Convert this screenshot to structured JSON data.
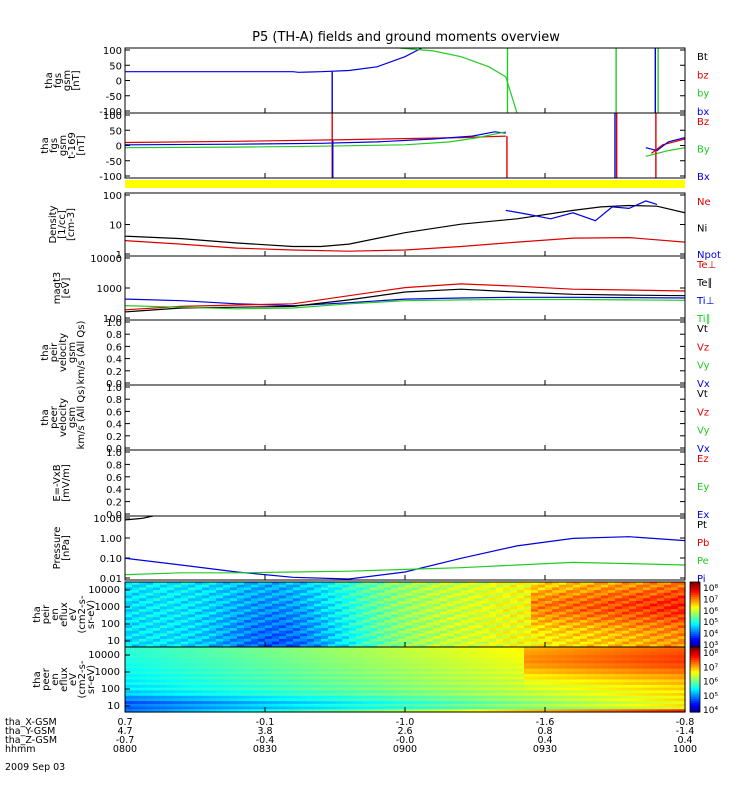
{
  "title": "P5 (TH-A) fields and ground moments overview",
  "colors": {
    "black": "#000000",
    "red": "#dd0000",
    "green": "#22cc22",
    "blue": "#0000dd",
    "yellow": "#ffff00"
  },
  "chart_data": [
    {
      "id": "fgs",
      "type": "line",
      "ylabel": [
        "tha",
        "fgs",
        "gsm",
        "[nT]"
      ],
      "yticks": [
        "100",
        "50",
        "0",
        "-50",
        "-100"
      ],
      "ylim": [
        -115,
        110
      ],
      "legend": [
        {
          "label": "Bt",
          "color": "black"
        },
        {
          "label": "bz",
          "color": "red"
        },
        {
          "label": "by",
          "color": "green"
        },
        {
          "label": "bx",
          "color": "blue"
        }
      ],
      "series": [
        {
          "color": "blue",
          "x": [
            0,
            0.3,
            0.31,
            0.33,
            0.35,
            0.4,
            0.45,
            0.5,
            0.53
          ],
          "y": [
            28,
            28,
            26,
            27,
            28,
            32,
            45,
            80,
            110
          ]
        },
        {
          "color": "green",
          "x": [
            0.49,
            0.55,
            0.6,
            0.65,
            0.68,
            0.7
          ],
          "y": [
            110,
            100,
            80,
            45,
            10,
            -115
          ]
        }
      ],
      "spikes": [
        {
          "x": 0.37,
          "from": -115,
          "to": 28,
          "color": "blue"
        },
        {
          "x": 0.683,
          "from": -115,
          "to": 110,
          "color": "green"
        },
        {
          "x": 0.877,
          "from": -115,
          "to": 110,
          "color": "green"
        },
        {
          "x": 0.947,
          "from": -115,
          "to": 110,
          "color": "blue"
        },
        {
          "x": 0.952,
          "from": -115,
          "to": 110,
          "color": "green"
        }
      ]
    },
    {
      "id": "fgs_169",
      "type": "line",
      "ylabel": [
        "tha",
        "fgs",
        "gsm",
        "t-169",
        "[nT]"
      ],
      "yticks": [
        "100",
        "50",
        "0",
        "-50",
        "-100"
      ],
      "ylim": [
        -115,
        110
      ],
      "legend": [
        {
          "label": "Bz",
          "color": "red"
        },
        {
          "label": "By",
          "color": "green"
        },
        {
          "label": "Bx",
          "color": "blue"
        }
      ],
      "series": [
        {
          "color": "red",
          "x": [
            0,
            0.2,
            0.4,
            0.6,
            0.65,
            0.68
          ],
          "y": [
            8,
            12,
            18,
            25,
            28,
            30
          ]
        },
        {
          "color": "blue",
          "x": [
            0,
            0.2,
            0.35,
            0.45,
            0.55,
            0.62,
            0.66,
            0.68
          ],
          "y": [
            0,
            2,
            5,
            10,
            20,
            30,
            45,
            40
          ]
        },
        {
          "color": "green",
          "x": [
            0,
            0.2,
            0.35,
            0.5,
            0.58,
            0.63,
            0.68
          ],
          "y": [
            -10,
            -8,
            -5,
            0,
            10,
            25,
            45
          ]
        },
        {
          "color": "red",
          "x": [
            0.94,
            0.96,
            0.98,
            1.0
          ],
          "y": [
            -30,
            0,
            10,
            20
          ]
        },
        {
          "color": "blue",
          "x": [
            0.93,
            0.95,
            0.97,
            1.0
          ],
          "y": [
            -10,
            -20,
            10,
            25
          ]
        },
        {
          "color": "green",
          "x": [
            0.93,
            0.95,
            0.97,
            1.0
          ],
          "y": [
            -40,
            -30,
            -20,
            -10
          ]
        }
      ],
      "spikes": [
        {
          "x": 0.37,
          "from": -115,
          "to": 110,
          "color": "red"
        },
        {
          "x": 0.371,
          "from": -115,
          "to": 15,
          "color": "blue"
        },
        {
          "x": 0.682,
          "from": -115,
          "to": 30,
          "color": "red"
        },
        {
          "x": 0.875,
          "from": -115,
          "to": 110,
          "color": "blue"
        },
        {
          "x": 0.878,
          "from": -115,
          "to": 110,
          "color": "red"
        },
        {
          "x": 0.948,
          "from": -115,
          "to": 110,
          "color": "red"
        }
      ]
    },
    {
      "id": "density",
      "type": "line",
      "scale": "log",
      "ylabel": [
        "Density",
        "[1/cc]",
        "[cm-3]"
      ],
      "yticks": [
        "100",
        "10",
        "1"
      ],
      "ylim": [
        0.2,
        300
      ],
      "legend": [
        {
          "label": "Ne",
          "color": "red"
        },
        {
          "label": "Ni",
          "color": "black"
        },
        {
          "label": "Npot",
          "color": "blue"
        }
      ],
      "series": [
        {
          "color": "black",
          "x": [
            0,
            0.1,
            0.2,
            0.3,
            0.35,
            0.4,
            0.5,
            0.6,
            0.7,
            0.8,
            0.85,
            0.9,
            0.95,
            1.0
          ],
          "y": [
            2,
            1.5,
            0.9,
            0.6,
            0.6,
            0.8,
            3,
            8,
            15,
            40,
            60,
            70,
            65,
            30
          ]
        },
        {
          "color": "red",
          "x": [
            0,
            0.1,
            0.2,
            0.3,
            0.4,
            0.5,
            0.6,
            0.7,
            0.8,
            0.9,
            1.0
          ],
          "y": [
            1.2,
            0.8,
            0.5,
            0.4,
            0.35,
            0.4,
            0.6,
            1.0,
            1.6,
            1.7,
            1.0
          ]
        },
        {
          "color": "blue",
          "x": [
            0.68,
            0.72,
            0.76,
            0.8,
            0.84,
            0.87,
            0.9,
            0.93,
            0.95
          ],
          "y": [
            40,
            25,
            15,
            30,
            12,
            60,
            50,
            120,
            80
          ]
        }
      ]
    },
    {
      "id": "temperature",
      "type": "line",
      "scale": "log",
      "ylabel": [
        "magt3",
        "[eV]"
      ],
      "yticks": [
        "10000",
        "1000",
        "100"
      ],
      "ylim": [
        50,
        12000
      ],
      "legend": [
        {
          "label": "Te⊥",
          "color": "red"
        },
        {
          "label": "Te∥",
          "color": "black"
        },
        {
          "label": "Ti⊥",
          "color": "blue"
        },
        {
          "label": "Ti∥",
          "color": "green"
        }
      ],
      "series": [
        {
          "color": "blue",
          "x": [
            0,
            0.1,
            0.2,
            0.3,
            0.4,
            0.5,
            0.6,
            0.7,
            0.8,
            0.9,
            1.0
          ],
          "y": [
            300,
            260,
            200,
            170,
            220,
            300,
            330,
            350,
            350,
            340,
            330
          ]
        },
        {
          "color": "red",
          "x": [
            0,
            0.1,
            0.2,
            0.3,
            0.4,
            0.5,
            0.6,
            0.7,
            0.8,
            0.9,
            1.0
          ],
          "y": [
            120,
            160,
            180,
            200,
            400,
            800,
            1100,
            900,
            700,
            650,
            600
          ]
        },
        {
          "color": "black",
          "x": [
            0,
            0.1,
            0.2,
            0.3,
            0.4,
            0.5,
            0.6,
            0.7,
            0.8,
            0.9,
            1.0
          ],
          "y": [
            100,
            140,
            150,
            160,
            280,
            550,
            700,
            550,
            450,
            420,
            400
          ]
        },
        {
          "color": "green",
          "x": [
            0,
            0.1,
            0.2,
            0.3,
            0.4,
            0.5,
            0.6,
            0.7,
            0.8,
            0.9,
            1.0
          ],
          "y": [
            170,
            150,
            130,
            140,
            200,
            260,
            280,
            290,
            290,
            280,
            270
          ]
        }
      ]
    },
    {
      "id": "peir_vel",
      "type": "line",
      "ylabel": [
        "tha",
        "peir",
        "velocity",
        "gsm",
        "km/s (All Qs)"
      ],
      "yticks": [
        "1.0",
        "0.8",
        "0.6",
        "0.4",
        "0.2",
        "0.0"
      ],
      "ylim": [
        0,
        1
      ],
      "legend": [
        {
          "label": "Vt",
          "color": "black"
        },
        {
          "label": "Vz",
          "color": "red"
        },
        {
          "label": "Vy",
          "color": "green"
        },
        {
          "label": "Vx",
          "color": "blue"
        }
      ],
      "series": []
    },
    {
      "id": "peer_vel",
      "type": "line",
      "ylabel": [
        "tha",
        "peer",
        "velocity",
        "gsm",
        "km/s (All Qs)"
      ],
      "yticks": [
        "1.0",
        "0.8",
        "0.6",
        "0.4",
        "0.2",
        "0.0"
      ],
      "ylim": [
        0,
        1
      ],
      "legend": [
        {
          "label": "Vt",
          "color": "black"
        },
        {
          "label": "Vz",
          "color": "red"
        },
        {
          "label": "Vy",
          "color": "green"
        },
        {
          "label": "Vx",
          "color": "blue"
        }
      ],
      "series": []
    },
    {
      "id": "efield",
      "type": "line",
      "ylabel": [
        "E=-VxB",
        "[mV/m]"
      ],
      "yticks": [
        "1.0",
        "0.8",
        "0.6",
        "0.4",
        "0.2",
        "0.0"
      ],
      "ylim": [
        0,
        1
      ],
      "legend": [
        {
          "label": "Ez",
          "color": "red"
        },
        {
          "label": "Ey",
          "color": "green"
        },
        {
          "label": "Ex",
          "color": "blue"
        }
      ],
      "series": []
    },
    {
      "id": "pressure",
      "type": "line",
      "scale": "log",
      "ylabel": [
        "Pressure",
        "[nPa]"
      ],
      "yticks": [
        "10.00",
        "1.00",
        "0.10",
        "0.01"
      ],
      "ylim": [
        0.007,
        30
      ],
      "legend": [
        {
          "label": "Pt",
          "color": "black"
        },
        {
          "label": "Pb",
          "color": "red"
        },
        {
          "label": "Pe",
          "color": "green"
        },
        {
          "label": "Pi",
          "color": "blue"
        }
      ],
      "series": [
        {
          "color": "black",
          "x": [
            0,
            0.03,
            0.05
          ],
          "y": [
            18,
            22,
            30
          ]
        },
        {
          "color": "blue",
          "x": [
            0,
            0.1,
            0.2,
            0.3,
            0.4,
            0.5,
            0.6,
            0.7,
            0.8,
            0.9,
            1.0
          ],
          "y": [
            0.12,
            0.05,
            0.02,
            0.01,
            0.008,
            0.02,
            0.12,
            0.6,
            1.6,
            2.0,
            1.2
          ]
        },
        {
          "color": "green",
          "x": [
            0,
            0.1,
            0.2,
            0.3,
            0.4,
            0.5,
            0.6,
            0.7,
            0.8,
            0.9,
            1.0
          ],
          "y": [
            0.014,
            0.018,
            0.018,
            0.02,
            0.022,
            0.028,
            0.035,
            0.05,
            0.07,
            0.06,
            0.05
          ]
        }
      ]
    },
    {
      "id": "peir_en",
      "type": "heatmap",
      "ylabel": [
        "tha",
        "peir",
        "en",
        "eflux",
        "eV",
        "(cm2-s-",
        "sr-eV)"
      ],
      "yticks": [
        "10000",
        "1000",
        "100",
        "10"
      ],
      "colorbar": [
        "10⁸",
        "10⁷",
        "10⁶",
        "10⁵",
        "10⁴",
        "10³"
      ]
    },
    {
      "id": "peer_en",
      "type": "heatmap",
      "ylabel": [
        "tha",
        "peer",
        "en",
        "eflux",
        "eV",
        "(cm2-s-",
        "sr-eV)"
      ],
      "yticks": [
        "10000",
        "1000",
        "100",
        "10"
      ],
      "colorbar": [
        "10⁸",
        "10⁷",
        "10⁶",
        "10⁵",
        "10⁴"
      ]
    }
  ],
  "xaxis": {
    "rows": [
      {
        "label": "tha_X-GSM",
        "values": [
          "0.7",
          "-0.1",
          "-1.0",
          "-1.6",
          "-0.8"
        ]
      },
      {
        "label": "tha_Y-GSM",
        "values": [
          "4.7",
          "3.8",
          "2.6",
          "0.8",
          "-1.4"
        ]
      },
      {
        "label": "tha_Z-GSM",
        "values": [
          "-0.7",
          "-0.4",
          "-0.0",
          "0.4",
          "0.4"
        ]
      },
      {
        "label": "hhmm",
        "values": [
          "0800",
          "0830",
          "0900",
          "0930",
          "1000"
        ]
      }
    ],
    "date": "2009 Sep 03"
  }
}
